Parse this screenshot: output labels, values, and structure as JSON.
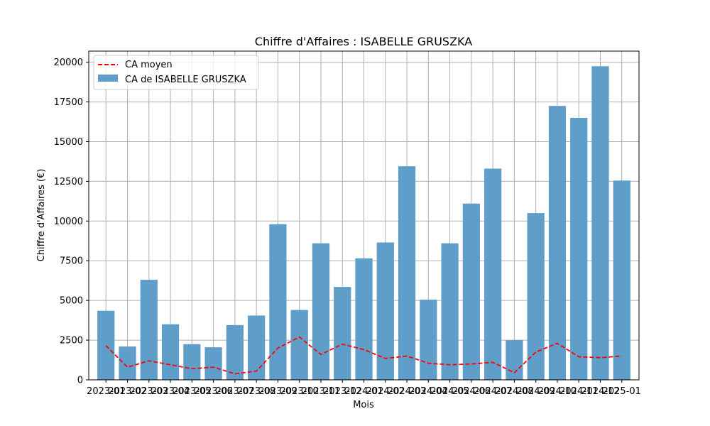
{
  "chart_data": {
    "type": "bar",
    "title": "Chiffre d'Affaires : ISABELLE GRUSZKA",
    "xlabel": "Mois",
    "ylabel": "Chiffre d'Affaires (€)",
    "ylim": [
      0,
      20700
    ],
    "yticks": [
      0,
      2500,
      5000,
      7500,
      10000,
      12500,
      15000,
      17500,
      20000
    ],
    "ytick_labels": [
      "0",
      "2500",
      "5000",
      "7500",
      "10000",
      "12500",
      "15000",
      "17500",
      "20000"
    ],
    "grid": true,
    "legend_position": "top-left",
    "categories": [
      "2023-01",
      "2023-02",
      "2023-03",
      "2023-04",
      "2023-05",
      "2023-06",
      "2023-07",
      "2023-08",
      "2023-09",
      "2023-10",
      "2023-11",
      "2023-12",
      "2024-01",
      "2024-02",
      "2024-03",
      "2024-04",
      "2024-05",
      "2024-06",
      "2024-07",
      "2024-08",
      "2024-09",
      "2024-10",
      "2024-11",
      "2024-12",
      "2025-01"
    ],
    "series": [
      {
        "name": "CA de ISABELLE GRUSZKA",
        "kind": "bar",
        "color": "#5f9ec9",
        "values": [
          4350,
          2100,
          6300,
          3500,
          2250,
          2050,
          3450,
          4050,
          9800,
          4400,
          8600,
          5850,
          7650,
          8650,
          13450,
          5050,
          8600,
          11100,
          13300,
          2500,
          10500,
          17250,
          16500,
          19750,
          12550
        ]
      },
      {
        "name": "CA moyen",
        "kind": "line",
        "style": "dashed",
        "color": "#ff0000",
        "values": [
          2150,
          800,
          1200,
          950,
          700,
          800,
          380,
          550,
          2000,
          2700,
          1600,
          2250,
          1900,
          1350,
          1500,
          1050,
          950,
          1000,
          1100,
          450,
          1750,
          2300,
          1450,
          1400,
          1500
        ]
      }
    ]
  }
}
